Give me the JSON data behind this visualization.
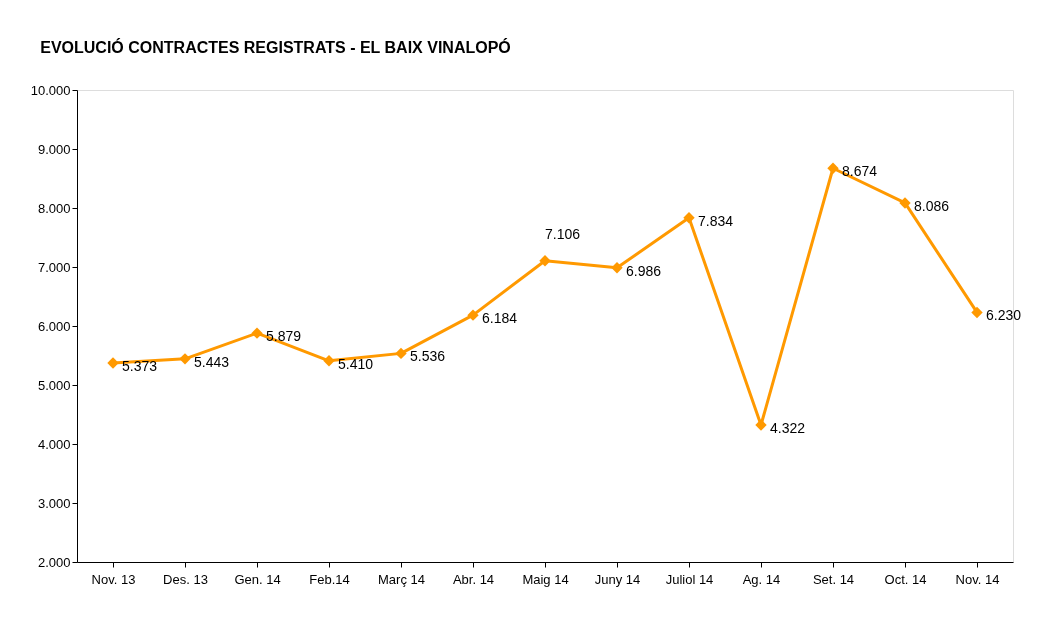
{
  "chart_data": {
    "type": "line",
    "title": "EVOLUCIÓ CONTRACTES REGISTRATS - EL BAIX VINALOPÓ",
    "categories": [
      "Nov. 13",
      "Des. 13",
      "Gen. 14",
      "Feb.14",
      "Març 14",
      "Abr. 14",
      "Maig 14",
      "Juny 14",
      "Juliol 14",
      "Ag. 14",
      "Set. 14",
      "Oct. 14",
      "Nov. 14"
    ],
    "series": [
      {
        "color": "#ff9900",
        "values": [
          5373,
          5443,
          5879,
          5410,
          5536,
          6184,
          7106,
          6986,
          7834,
          4322,
          8674,
          8086,
          6230
        ],
        "value_labels": [
          "5.373",
          "5.443",
          "5.879",
          "5.410",
          "5.536",
          "6.184",
          "7.106",
          "6.986",
          "7.834",
          "4.322",
          "8.674",
          "8.086",
          "6.230"
        ]
      }
    ],
    "ylim": [
      2000,
      10000
    ],
    "yticks": [
      {
        "value": 2000,
        "label": "2.000"
      },
      {
        "value": 3000,
        "label": "3.000"
      },
      {
        "value": 4000,
        "label": "4.000"
      },
      {
        "value": 5000,
        "label": "5.000"
      },
      {
        "value": 6000,
        "label": "6.000"
      },
      {
        "value": 7000,
        "label": "7.000"
      },
      {
        "value": 8000,
        "label": "8.000"
      },
      {
        "value": 9000,
        "label": "9.000"
      },
      {
        "value": 10000,
        "label": "10.000"
      }
    ],
    "grid": false,
    "marker": "diamond",
    "line_style": "solid"
  }
}
